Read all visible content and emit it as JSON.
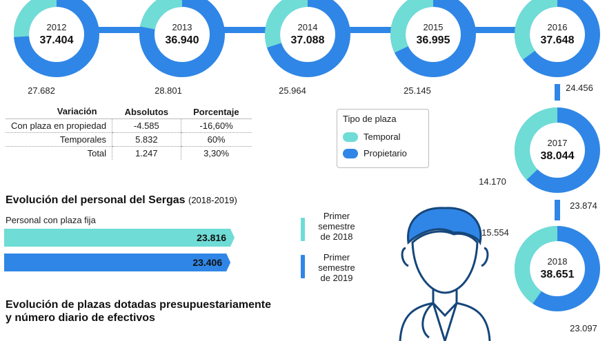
{
  "colors": {
    "temporal": "#6fdcd6",
    "propietario": "#2f86e6",
    "connector": "#2f86e6"
  },
  "chart_data": [
    {
      "type": "pie",
      "subtype": "donut",
      "series": [
        {
          "year": "2012",
          "total": "37.404",
          "temporal": 9722,
          "propietario": 27682,
          "propietario_label": "27.682"
        },
        {
          "year": "2013",
          "total": "36.940",
          "temporal": 8139,
          "propietario": 28801,
          "propietario_label": "28.801"
        },
        {
          "year": "2014",
          "total": "37.088",
          "temporal": 11124,
          "propietario": 25964,
          "propietario_label": "25.964"
        },
        {
          "year": "2015",
          "total": "36.995",
          "temporal": 11850,
          "propietario": 25145,
          "propietario_label": "25.145"
        },
        {
          "year": "2016",
          "total": "37.648",
          "temporal": 13192,
          "propietario": 24456,
          "propietario_label": "24.456"
        },
        {
          "year": "2017",
          "total": "38.044",
          "temporal": 14170,
          "temporal_label": "14.170",
          "propietario": 23874,
          "propietario_label": "23.874"
        },
        {
          "year": "2018",
          "total": "38.651",
          "temporal": 15554,
          "temporal_label": "15.554",
          "propietario": 23097,
          "propietario_label": "23.097"
        }
      ],
      "legend": {
        "title": "Tipo de plaza",
        "items": [
          {
            "label": "Temporal",
            "color": "#6fdcd6"
          },
          {
            "label": "Propietario",
            "color": "#2f86e6"
          }
        ],
        "placement": "center-right"
      }
    },
    {
      "type": "table",
      "columns": [
        "Variación",
        "Absolutos",
        "Porcentaje"
      ],
      "rows": [
        [
          "Con plaza en propiedad",
          "-4.585",
          "-16,60%"
        ],
        [
          "Temporales",
          "5.832",
          "60%"
        ],
        [
          "Total",
          "1.247",
          "3,30%"
        ]
      ]
    },
    {
      "type": "bar",
      "orientation": "horizontal",
      "title": "Evolución del personal del Sergas",
      "subtitle": "(2018-2019)",
      "ylabel": "Personal con plaza fija",
      "series": [
        {
          "name": "Primer semestre de 2018",
          "value": 23816,
          "label": "23.816",
          "color": "#6fdcd6",
          "key_lines": [
            "Primer",
            "semestre",
            "de 2018"
          ]
        },
        {
          "name": "Primer semestre de 2019",
          "value": 23406,
          "label": "23.406",
          "color": "#2f86e6",
          "key_lines": [
            "Primer",
            "semestre",
            "de 2019"
          ]
        }
      ]
    }
  ],
  "footer_title_line1": "Evolución de plazas dotadas presupuestariamente",
  "footer_title_line2": "y número diario de efectivos"
}
